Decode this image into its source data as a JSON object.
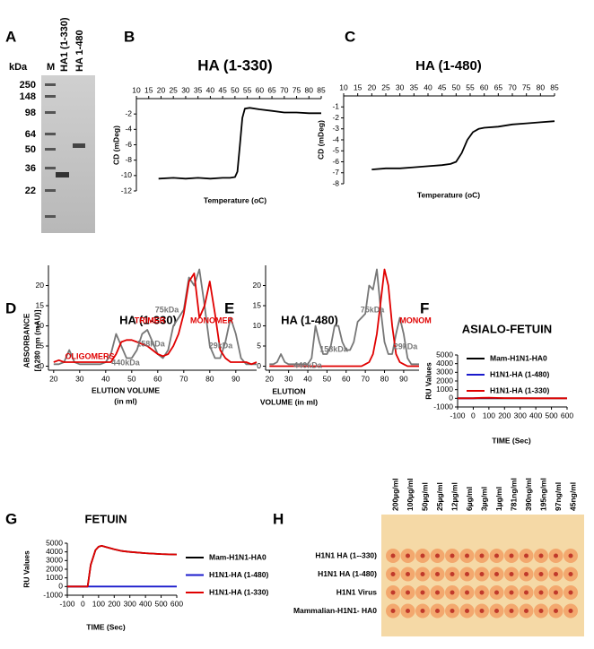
{
  "gel": {
    "panel": "A",
    "unit_label": "kDa",
    "lanes": [
      "M",
      "HA1 (1-330)",
      "HA 1-480"
    ],
    "markers": [
      250,
      148,
      98,
      64,
      50,
      36,
      22
    ]
  },
  "chart_data": [
    {
      "type": "line",
      "panel": "B",
      "title": "HA (1-330)",
      "x_label": "Temperature (oC)",
      "y_label": "CD (mDeg)",
      "xaxis": "top",
      "x": [
        19,
        25,
        30,
        35,
        40,
        45,
        48,
        50,
        51,
        52,
        53,
        54,
        56,
        60,
        65,
        70,
        75,
        80,
        85
      ],
      "series": [
        {
          "color": "#000000",
          "values": [
            -10.4,
            -10.3,
            -10.4,
            -10.3,
            -10.4,
            -10.3,
            -10.3,
            -10.2,
            -9.5,
            -6,
            -2.5,
            -1.3,
            -1.2,
            -1.4,
            -1.6,
            -1.8,
            -1.8,
            -1.9,
            -1.9
          ]
        }
      ],
      "xlim": [
        10,
        85
      ],
      "xticks": [
        10,
        15,
        20,
        25,
        30,
        35,
        40,
        45,
        50,
        55,
        60,
        65,
        70,
        75,
        80,
        85
      ],
      "ylim": [
        -12,
        0
      ],
      "yticks": [
        -12,
        -10,
        -8,
        -6,
        -4,
        -2
      ]
    },
    {
      "type": "line",
      "panel": "C",
      "title": "HA (1-480)",
      "x_label": "Temperature (oC)",
      "y_label": "CD (mDeg)",
      "xaxis": "top",
      "x": [
        20,
        25,
        30,
        35,
        40,
        45,
        48,
        50,
        52,
        54,
        56,
        58,
        60,
        65,
        70,
        75,
        80,
        85
      ],
      "series": [
        {
          "color": "#000000",
          "values": [
            -6.7,
            -6.6,
            -6.6,
            -6.5,
            -6.4,
            -6.3,
            -6.2,
            -6.0,
            -5.2,
            -4.0,
            -3.3,
            -3.0,
            -2.9,
            -2.8,
            -2.6,
            -2.5,
            -2.4,
            -2.3
          ]
        }
      ],
      "xlim": [
        10,
        85
      ],
      "xticks": [
        10,
        15,
        20,
        25,
        30,
        35,
        40,
        45,
        50,
        55,
        60,
        65,
        70,
        75,
        80,
        85
      ],
      "ylim": [
        -8,
        0
      ],
      "yticks": [
        -8,
        -7,
        -6,
        -5,
        -4,
        -3,
        -2,
        -1
      ]
    },
    {
      "type": "line",
      "panel": "D",
      "title": "HA (1-330)",
      "x_label": [
        "ELUTION VOLUME",
        "(in ml)"
      ],
      "y_label": [
        "ABSORBANCE",
        "[A280 nm (mAU)]"
      ],
      "x": [
        20,
        22,
        24,
        26,
        28,
        30,
        32,
        34,
        36,
        38,
        40,
        42,
        44,
        46,
        48,
        50,
        52,
        54,
        56,
        58,
        60,
        62,
        64,
        66,
        68,
        70,
        72,
        74,
        76,
        78,
        80,
        82,
        84,
        86,
        88,
        90,
        92,
        94,
        96,
        98
      ],
      "series": [
        {
          "color": "#777777",
          "values": [
            0.5,
            0.5,
            1,
            4,
            1,
            0.5,
            0.5,
            0.5,
            0.5,
            0.5,
            1,
            3,
            8,
            5,
            2,
            2,
            4,
            8,
            9,
            6,
            3,
            2,
            4,
            10,
            12,
            14,
            22,
            20,
            24,
            15,
            5,
            2,
            2,
            6,
            12,
            8,
            2,
            0.5,
            0.5,
            0.5
          ]
        },
        {
          "color": "#e00000",
          "values": [
            1,
            1.5,
            1,
            1,
            1,
            1,
            1,
            1,
            1,
            1,
            1,
            1,
            3,
            6,
            6.5,
            6.5,
            6,
            5.5,
            5,
            4,
            3,
            2.5,
            3,
            5,
            8,
            13,
            21,
            23,
            12,
            15,
            21,
            13,
            4,
            2,
            1,
            1,
            1,
            1,
            0.5,
            1
          ]
        }
      ],
      "annotations": [
        {
          "text": "TRIMER",
          "color": "#e00000"
        },
        {
          "text": "MONOMER",
          "color": "#e00000"
        },
        {
          "text": "OLIGOMERS",
          "color": "#e00000"
        },
        {
          "text": "75kDa",
          "color": "#777777"
        },
        {
          "text": "158kDa",
          "color": "#777777"
        },
        {
          "text": "440kDa",
          "color": "#777777"
        },
        {
          "text": "29kDa",
          "color": "#777777"
        }
      ],
      "xlim": [
        18,
        98
      ],
      "xticks": [
        20,
        30,
        40,
        50,
        60,
        70,
        80,
        90
      ],
      "ylim": [
        -1,
        25
      ],
      "yticks": [
        0,
        5,
        10,
        15,
        20
      ]
    },
    {
      "type": "line",
      "panel": "E",
      "title": "HA (1-480)",
      "x_label": [
        "ELUTION",
        "VOLUME (in ml)"
      ],
      "x": [
        20,
        22,
        24,
        26,
        28,
        30,
        32,
        34,
        36,
        38,
        40,
        42,
        44,
        46,
        48,
        50,
        52,
        54,
        56,
        58,
        60,
        62,
        64,
        66,
        68,
        70,
        72,
        74,
        76,
        78,
        80,
        82,
        84,
        86,
        88,
        90,
        92,
        94,
        96,
        98
      ],
      "series": [
        {
          "color": "#777777",
          "values": [
            0.5,
            0.5,
            1,
            3,
            1,
            0.5,
            0.5,
            0.5,
            0.5,
            0.5,
            0.5,
            2,
            10,
            6,
            3,
            3,
            5,
            10,
            10,
            6,
            4,
            4,
            6,
            11,
            12,
            13,
            20,
            19,
            24,
            14,
            6,
            3,
            3,
            8,
            12,
            8,
            2,
            0.5,
            0.5,
            0.5
          ]
        },
        {
          "color": "#e00000",
          "values": [
            0,
            0,
            0,
            0,
            0,
            0,
            0,
            0,
            0,
            0,
            0,
            0,
            0,
            0,
            0,
            0,
            0,
            0,
            0,
            0,
            0,
            0,
            0,
            0,
            0,
            0.5,
            1,
            3,
            8,
            16,
            24,
            20,
            10,
            3,
            1,
            0.5,
            0,
            0,
            0,
            0
          ]
        }
      ],
      "annotations": [
        {
          "text": "75kDa",
          "color": "#777777"
        },
        {
          "text": "158kDa",
          "color": "#777777"
        },
        {
          "text": "440kDa",
          "color": "#777777"
        },
        {
          "text": "29kDa",
          "color": "#777777"
        },
        {
          "text": "MONOM",
          "color": "#e00000"
        }
      ],
      "xlim": [
        18,
        98
      ],
      "xticks": [
        20,
        30,
        40,
        50,
        60,
        70,
        80,
        90
      ],
      "ylim": [
        -1,
        25
      ],
      "yticks": [
        0,
        5,
        10,
        15,
        20
      ]
    },
    {
      "type": "line",
      "panel": "F",
      "title": "ASIALO-FETUIN",
      "x_label": "TIME (Sec)",
      "y_label": "RU Values",
      "legend": "upper-left",
      "x": [
        -100,
        0,
        50,
        100,
        150,
        200,
        300,
        400,
        500,
        600
      ],
      "series": [
        {
          "name": "Mam-H1N1-HA0",
          "color": "#000000",
          "values": [
            0,
            0,
            0,
            0,
            0,
            0,
            0,
            0,
            0,
            0
          ]
        },
        {
          "name": "H1N1-HA (1-480)",
          "color": "#1a1acc",
          "values": [
            0,
            0,
            40,
            50,
            30,
            null,
            null,
            null,
            null,
            null
          ]
        },
        {
          "name": "H1N1-HA (1-330)",
          "color": "#e00000",
          "values": [
            0,
            0,
            60,
            70,
            50,
            20,
            10,
            0,
            0,
            0
          ]
        }
      ],
      "xlim": [
        -100,
        600
      ],
      "xticks": [
        -100,
        0,
        100,
        200,
        300,
        400,
        500,
        600
      ],
      "ylim": [
        -1000,
        5000
      ],
      "yticks": [
        -1000,
        0,
        1000,
        2000,
        3000,
        4000,
        5000
      ]
    },
    {
      "type": "line",
      "panel": "G",
      "title": "FETUIN",
      "x_label": "TIME (Sec)",
      "y_label": "RU Values",
      "legend": "right",
      "x": [
        -100,
        0,
        30,
        50,
        80,
        100,
        120,
        150,
        200,
        250,
        300,
        400,
        500,
        600
      ],
      "series": [
        {
          "name": "Mam-H1N1-HA0",
          "color": "#000000",
          "values": [
            0,
            0,
            0,
            2500,
            4200,
            4600,
            4700,
            4550,
            4300,
            4100,
            4000,
            3850,
            3750,
            3700
          ]
        },
        {
          "name": "H1N1-HA (1-480)",
          "color": "#1a1acc",
          "values": [
            0,
            0,
            0,
            0,
            0,
            0,
            0,
            0,
            0,
            0,
            0,
            0,
            0,
            0
          ]
        },
        {
          "name": "H1N1-HA (1-330)",
          "color": "#e00000",
          "values": [
            0,
            0,
            0,
            2500,
            4200,
            4600,
            4700,
            4550,
            4300,
            4100,
            4000,
            3850,
            3750,
            3700
          ]
        }
      ],
      "xlim": [
        -100,
        600
      ],
      "xticks": [
        -100,
        0,
        100,
        200,
        300,
        400,
        500,
        600
      ],
      "ylim": [
        -1000,
        5000
      ],
      "yticks": [
        -1000,
        0,
        1000,
        2000,
        3000,
        4000,
        5000
      ]
    }
  ],
  "plate": {
    "panel": "H",
    "columns": [
      "200µg/ml",
      "100µg/ml",
      "50µg/ml",
      "25µg/ml",
      "12µg/ml",
      "6µg/ml",
      "3µg/ml",
      "1µg/ml",
      "781ng/ml",
      "390ng/ml",
      "195ng/ml",
      "97ng/ml",
      "45ng/ml"
    ],
    "rows": [
      "H1N1 HA (1--330)",
      "H1N1 HA (1-480)",
      "H1N1 Virus",
      "Mammalian-H1N1- HA0"
    ]
  }
}
